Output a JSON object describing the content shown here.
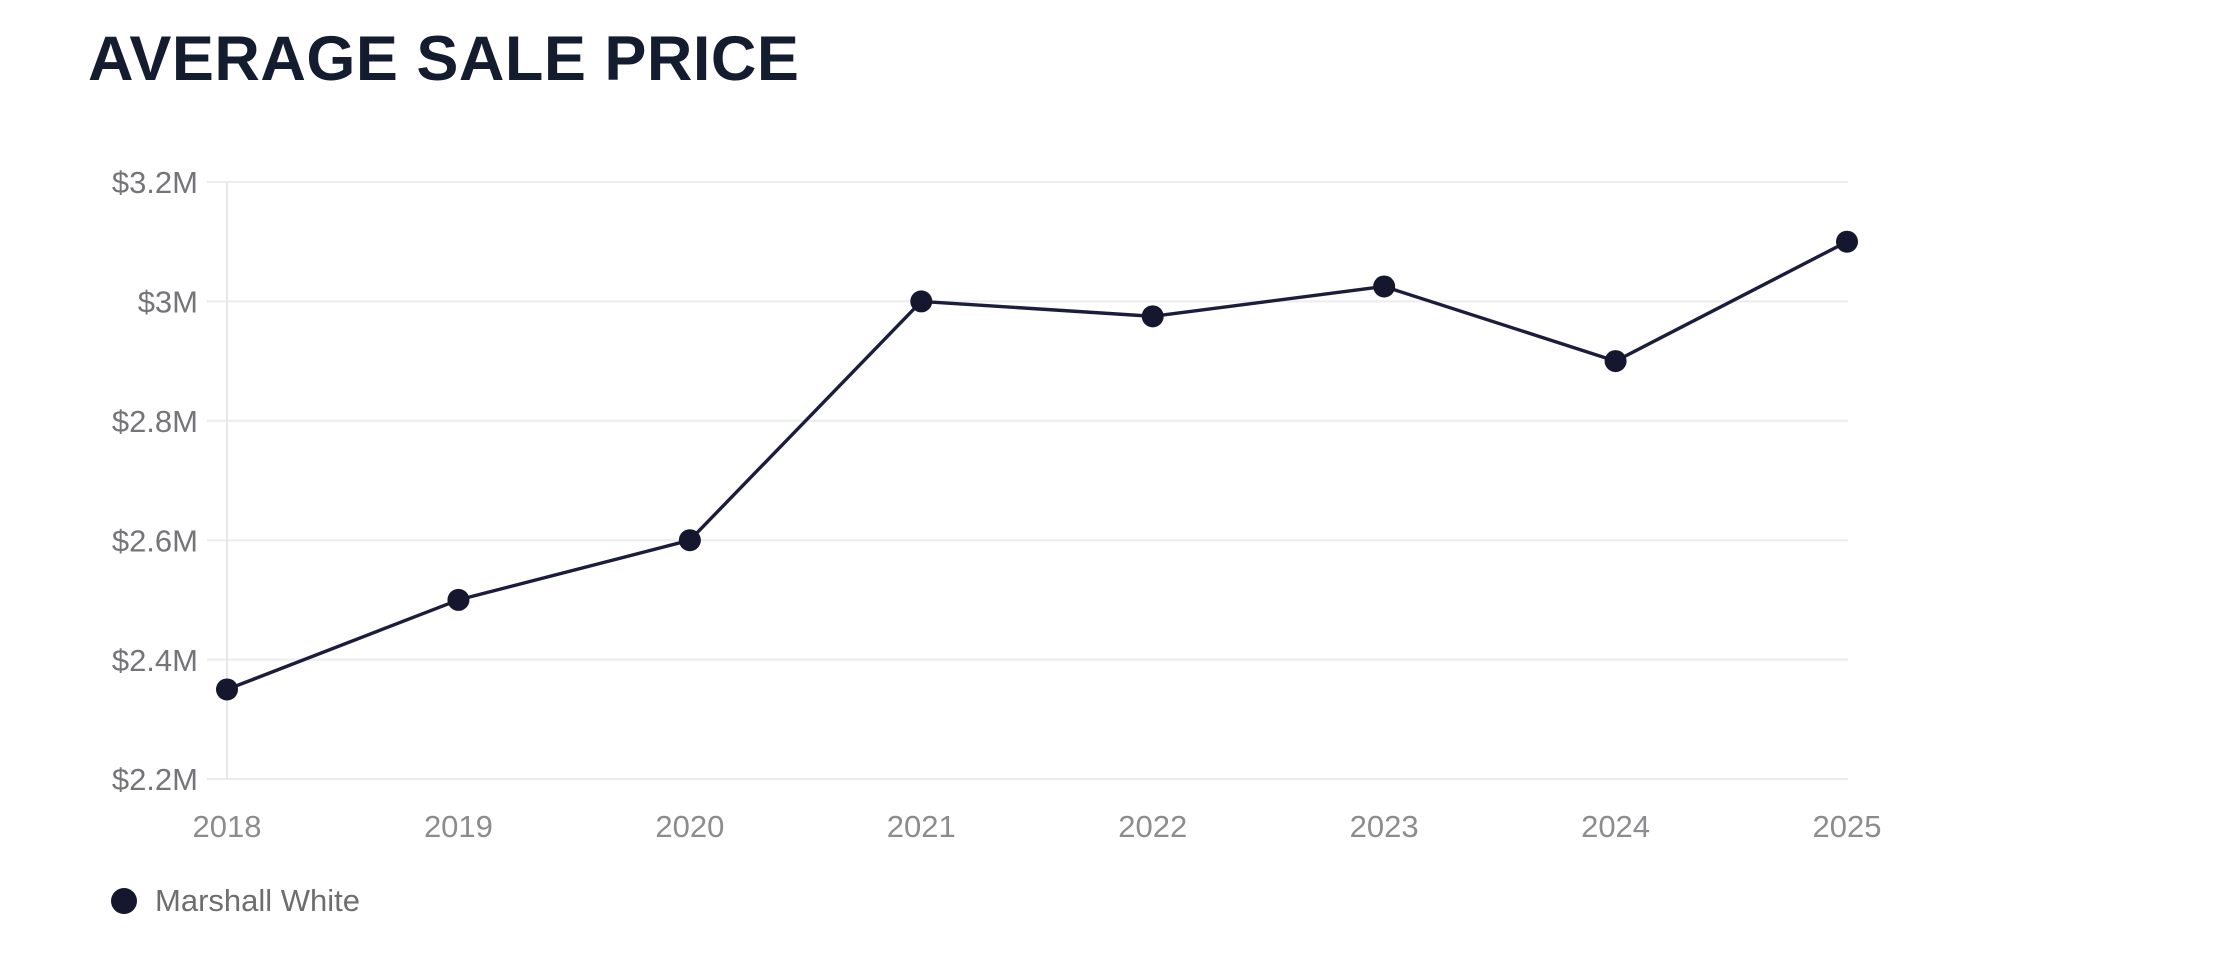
{
  "page": {
    "background": "#ffffff"
  },
  "header": {
    "title": "AVERAGE SALE PRICE"
  },
  "legend": {
    "items": [
      {
        "label": "Marshall White",
        "color": "#15172f"
      }
    ]
  },
  "chart_data": {
    "type": "line",
    "title": "AVERAGE SALE PRICE",
    "x": [
      2018,
      2019,
      2020,
      2021,
      2022,
      2023,
      2024,
      2025
    ],
    "x_tick_labels": [
      "2018",
      "2019",
      "2020",
      "2021",
      "2022",
      "2023",
      "2024",
      "2025"
    ],
    "series": [
      {
        "name": "Marshall White",
        "values": [
          2.35,
          2.5,
          2.6,
          3.0,
          2.975,
          3.025,
          2.9,
          3.1
        ]
      }
    ],
    "ylabel": "",
    "xlabel": "",
    "ylim": [
      2.2,
      3.2
    ],
    "y_ticks": [
      3.2,
      3.0,
      2.8,
      2.6,
      2.4,
      2.2
    ],
    "y_tick_labels": [
      "$3.2M",
      "$3M",
      "$2.8M",
      "$2.6M",
      "$2.4M",
      "$2.2M"
    ],
    "grid": "horizontal",
    "legend_position": "bottom-left",
    "colors": {
      "line": "#1b1d3c",
      "point": "#15172f",
      "grid": "#ececec",
      "axis_line": "#e7e7e7",
      "y_tick_text": "#757579",
      "x_tick_text": "#8c8c8e",
      "title": "#141c30",
      "legend_text": "#6e6e6e",
      "background": "#ffffff"
    }
  }
}
